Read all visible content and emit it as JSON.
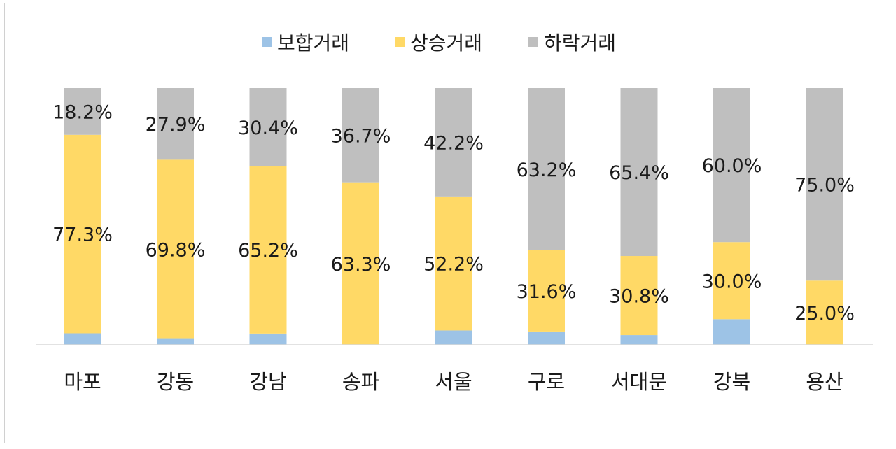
{
  "chart_data": {
    "type": "bar",
    "stacked": true,
    "percent_stacked": true,
    "grid": false,
    "legend_position": "top",
    "categories": [
      "마포",
      "강동",
      "강남",
      "송파",
      "서울",
      "구로",
      "서대문",
      "강북",
      "용산"
    ],
    "series": [
      {
        "name": "보합거래",
        "color": "#9dc3e6",
        "values": [
          4.5,
          2.3,
          4.4,
          0.0,
          5.6,
          5.2,
          3.8,
          10.0,
          0.0
        ],
        "labels": [
          "",
          "",
          "",
          "",
          "",
          "",
          "",
          "",
          ""
        ]
      },
      {
        "name": "상승거래",
        "color": "#ffd966",
        "values": [
          77.3,
          69.8,
          65.2,
          63.3,
          52.2,
          31.6,
          30.8,
          30.0,
          25.0
        ],
        "labels": [
          "77.3%",
          "69.8%",
          "65.2%",
          "63.3%",
          "52.2%",
          "31.6%",
          "30.8%",
          "30.0%",
          "25.0%"
        ]
      },
      {
        "name": "하락거래",
        "color": "#bfbfbf",
        "values": [
          18.2,
          27.9,
          30.4,
          36.7,
          42.2,
          63.2,
          65.4,
          60.0,
          75.0
        ],
        "labels": [
          "18.2%",
          "27.9%",
          "30.4%",
          "36.7%",
          "42.2%",
          "63.2%",
          "65.4%",
          "60.0%",
          "75.0%"
        ]
      }
    ],
    "ylim": [
      0,
      100
    ]
  }
}
